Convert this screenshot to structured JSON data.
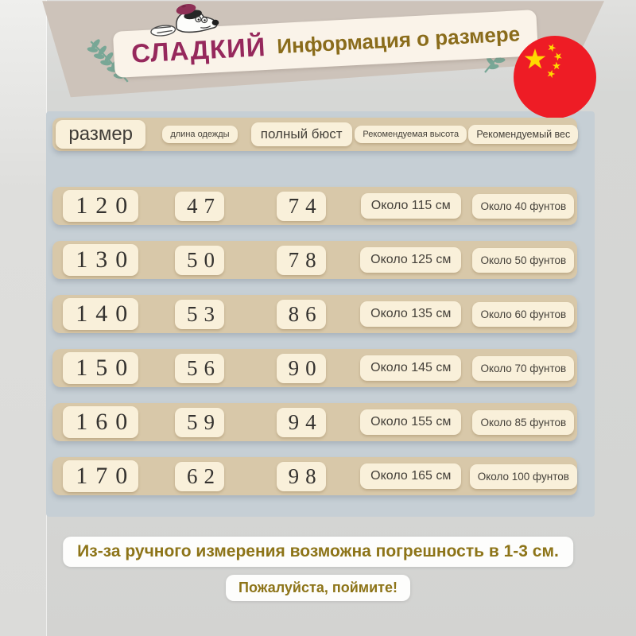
{
  "header": {
    "brand": "СЛАДКИЙ",
    "title": "Информация о размере"
  },
  "chart_data": {
    "type": "table",
    "title": "Информация о размере",
    "columns": [
      "размер",
      "длина одежды",
      "полный бюст",
      "Рекомендуемая высота",
      "Рекомендуемый вес"
    ],
    "rows": [
      [
        "120",
        "47",
        "74",
        "Около 115 см",
        "Около 40 фунтов"
      ],
      [
        "130",
        "50",
        "78",
        "Около 125 см",
        "Около 50 фунтов"
      ],
      [
        "140",
        "53",
        "86",
        "Около 135 см",
        "Около 60 фунтов"
      ],
      [
        "150",
        "56",
        "90",
        "Около 145 см",
        "Около 70 фунтов"
      ],
      [
        "160",
        "59",
        "94",
        "Около 155 см",
        "Около 85 фунтов"
      ],
      [
        "170",
        "62",
        "98",
        "Около 165 см",
        "Около 100 фунтов"
      ]
    ]
  },
  "footer": {
    "note1": "Из-за ручного измерения возможна погрешность в 1-3 см.",
    "note2": "Пожалуйста, поймите!"
  },
  "icons": {
    "flag": "china-flag-icon",
    "dog": "snoopy-dog-icon",
    "leaf_left": "laurel-sprig-left-icon",
    "leaf_right": "laurel-sprig-right-icon"
  },
  "colors": {
    "brand_text": "#96285c",
    "title_text": "#8a6c1b",
    "banner": "#cdc3ba",
    "table_band": "#d8c8a9",
    "cell_pill": "#f9f0da",
    "backdrop": "#c6cfd5",
    "note_text": "#8d7418",
    "flag_red": "#ee1c25",
    "flag_yellow": "#ffd900",
    "leaf": "#78a796"
  }
}
